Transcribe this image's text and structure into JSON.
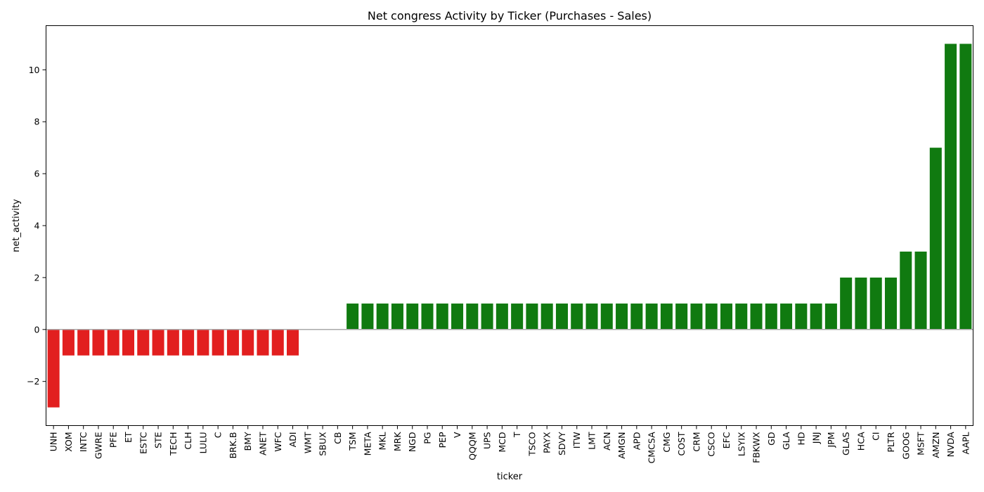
{
  "chart_data": {
    "type": "bar",
    "title": "Net congress Activity by Ticker (Purchases - Sales)",
    "xlabel": "ticker",
    "ylabel": "net_activity",
    "ylim": [
      -3.7,
      11.7
    ],
    "yticks": [
      -2,
      0,
      2,
      4,
      6,
      8,
      10
    ],
    "grid": false,
    "legend": "none",
    "colors": {
      "positive": "#107a10",
      "negative": "#e21f1f",
      "zero_line": "#a9a9a9",
      "axis": "#000000"
    },
    "categories": [
      "UNH",
      "XOM",
      "INTC",
      "GWRE",
      "PFE",
      "ET",
      "ESTC",
      "STE",
      "TECH",
      "CLH",
      "LULU",
      "C",
      "BRK.B",
      "BMY",
      "ANET",
      "WFC",
      "ADI",
      "WMT",
      "SBUX",
      "CB",
      "TSM",
      "META",
      "MKL",
      "MRK",
      "NGD",
      "PG",
      "PEP",
      "V",
      "QQQM",
      "UPS",
      "MCD",
      "T",
      "TSCO",
      "PAYX",
      "SDVY",
      "ITW",
      "LMT",
      "ACN",
      "AMGN",
      "APD",
      "CMCSA",
      "CMG",
      "COST",
      "CRM",
      "CSCO",
      "EFC",
      "LSYIX",
      "FBKWX",
      "GD",
      "GLA",
      "HD",
      "JNJ",
      "JPM",
      "GLAS",
      "HCA",
      "CI",
      "PLTR",
      "GOOG",
      "MSFT",
      "AMZN",
      "NVDA",
      "AAPL"
    ],
    "values": [
      -3,
      -1,
      -1,
      -1,
      -1,
      -1,
      -1,
      -1,
      -1,
      -1,
      -1,
      -1,
      -1,
      -1,
      -1,
      -1,
      -1,
      0,
      0,
      0,
      1,
      1,
      1,
      1,
      1,
      1,
      1,
      1,
      1,
      1,
      1,
      1,
      1,
      1,
      1,
      1,
      1,
      1,
      1,
      1,
      1,
      1,
      1,
      1,
      1,
      1,
      1,
      1,
      1,
      1,
      1,
      1,
      1,
      2,
      2,
      2,
      2,
      3,
      3,
      7,
      11,
      11
    ]
  }
}
